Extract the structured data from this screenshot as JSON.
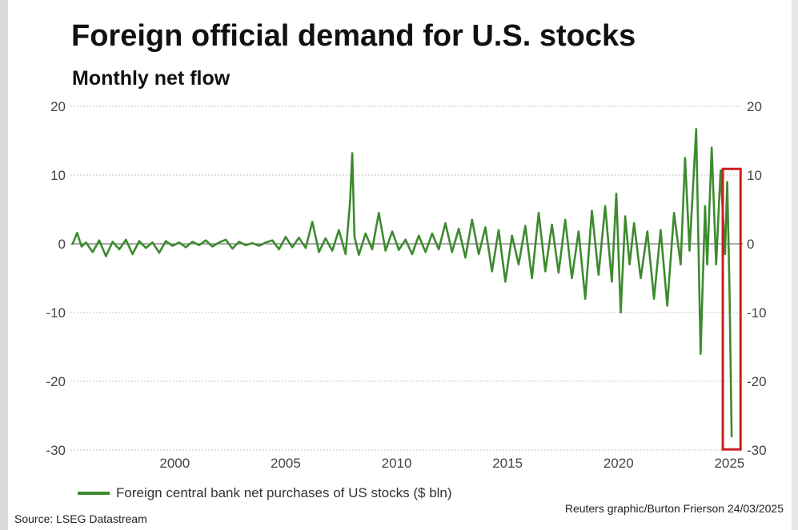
{
  "chart_data": {
    "type": "line",
    "title": "Foreign official demand for U.S. stocks",
    "subtitle": "Monthly net flow",
    "xlabel": "",
    "ylabel": "",
    "xlim": [
      1995.3,
      2025.6
    ],
    "ylim": [
      -30,
      20
    ],
    "x_ticks": [
      2000,
      2005,
      2010,
      2015,
      2020,
      2025
    ],
    "x_tick_labels": [
      "2000",
      "2005",
      "2010",
      "2015",
      "2020",
      "2025"
    ],
    "y_ticks": [
      20,
      10,
      0,
      -10,
      -20,
      -30
    ],
    "y_tick_labels": [
      "20",
      "10",
      "0",
      "-10",
      "-20",
      "-30"
    ],
    "grid": true,
    "dual_y_axis": true,
    "series": [
      {
        "name": "Foreign central bank net purchases of US stocks ($ bln)",
        "color": "#3d8a2f",
        "x": [
          1995.4,
          1995.6,
          1995.8,
          1996.0,
          1996.3,
          1996.6,
          1996.9,
          1997.2,
          1997.5,
          1997.8,
          1998.1,
          1998.4,
          1998.7,
          1999.0,
          1999.3,
          1999.6,
          1999.9,
          2000.2,
          2000.5,
          2000.8,
          2001.1,
          2001.4,
          2001.7,
          2002.0,
          2002.3,
          2002.6,
          2002.9,
          2003.2,
          2003.5,
          2003.8,
          2004.1,
          2004.4,
          2004.7,
          2005.0,
          2005.3,
          2005.6,
          2005.9,
          2006.2,
          2006.5,
          2006.8,
          2007.1,
          2007.4,
          2007.7,
          2007.9,
          2008.0,
          2008.1,
          2008.3,
          2008.6,
          2008.9,
          2009.2,
          2009.5,
          2009.8,
          2010.1,
          2010.4,
          2010.7,
          2011.0,
          2011.3,
          2011.6,
          2011.9,
          2012.2,
          2012.5,
          2012.8,
          2013.1,
          2013.4,
          2013.7,
          2014.0,
          2014.3,
          2014.6,
          2014.9,
          2015.2,
          2015.5,
          2015.8,
          2016.1,
          2016.4,
          2016.7,
          2017.0,
          2017.3,
          2017.6,
          2017.9,
          2018.2,
          2018.5,
          2018.8,
          2019.1,
          2019.4,
          2019.7,
          2019.9,
          2020.1,
          2020.3,
          2020.5,
          2020.7,
          2021.0,
          2021.3,
          2021.6,
          2021.9,
          2022.2,
          2022.5,
          2022.8,
          2023.0,
          2023.2,
          2023.5,
          2023.7,
          2023.9,
          2024.0,
          2024.2,
          2024.4,
          2024.6,
          2024.8,
          2024.9,
          2025.0,
          2025.1
        ],
        "values": [
          0,
          1.6,
          -0.4,
          0.2,
          -1.2,
          0.5,
          -1.8,
          0.3,
          -0.8,
          0.6,
          -1.5,
          0.4,
          -0.6,
          0.2,
          -1.3,
          0.4,
          -0.3,
          0.2,
          -0.5,
          0.3,
          -0.2,
          0.5,
          -0.4,
          0.2,
          0.6,
          -0.7,
          0.3,
          -0.2,
          0.1,
          -0.3,
          0.2,
          0.5,
          -0.8,
          1.0,
          -0.5,
          0.9,
          -0.6,
          3.2,
          -1.2,
          0.8,
          -1.0,
          2.0,
          -1.5,
          6.0,
          13.2,
          1.0,
          -1.6,
          1.5,
          -0.8,
          4.5,
          -1.0,
          1.8,
          -0.9,
          0.6,
          -1.5,
          1.2,
          -1.2,
          1.5,
          -0.8,
          3.0,
          -1.2,
          2.2,
          -2.0,
          3.5,
          -1.5,
          2.4,
          -4.0,
          2.0,
          -5.5,
          1.2,
          -3.0,
          2.6,
          -5.0,
          4.5,
          -4.0,
          2.8,
          -4.2,
          3.5,
          -5.0,
          1.8,
          -8.0,
          4.8,
          -4.5,
          5.5,
          -5.5,
          7.3,
          -10.0,
          4.0,
          -3.0,
          3.0,
          -5.0,
          1.8,
          -8.0,
          2.0,
          -9.0,
          4.5,
          -3.0,
          12.5,
          -1.0,
          16.7,
          -16.0,
          5.5,
          -3.0,
          14.0,
          -3.0,
          10.7,
          -1.5,
          9.0,
          -6.5,
          -28.0
        ]
      }
    ]
  },
  "legend": {
    "label": "Foreign central bank net purchases of US stocks ($ bln)"
  },
  "footer": {
    "source": "Source: LSEG Datastream",
    "credit": "Reuters graphic/Burton Frierson 24/03/2025"
  },
  "highlight": {
    "color": "#cc1f1f"
  }
}
